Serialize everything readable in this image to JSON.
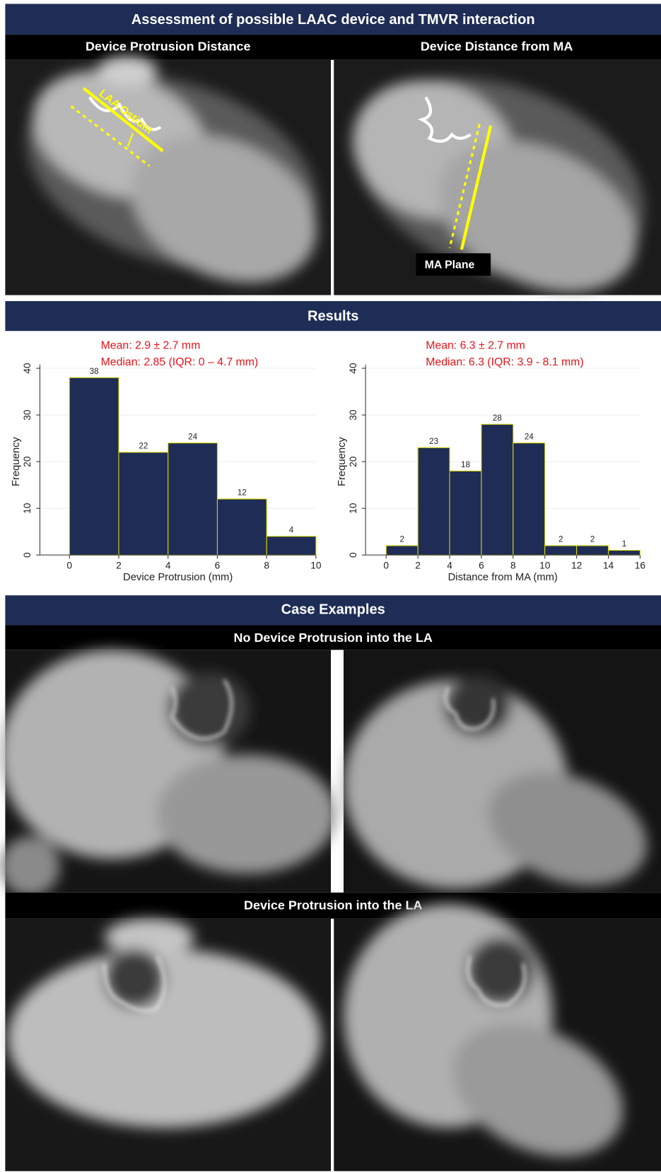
{
  "header": {
    "title": "Assessment of possible LAAC device and TMVR interaction"
  },
  "panels": {
    "left_title": "Device Protrusion Distance",
    "right_title": "Device Distance from MA",
    "ostium_label": "LAA Ostium",
    "ma_plane_label": "MA Plane"
  },
  "results_title": "Results",
  "case_examples_title": "Case Examples",
  "row_titles": [
    "No Device Protrusion into the LA",
    "Device Protrusion into the LA"
  ],
  "chart_data": [
    {
      "type": "histogram",
      "annotations": [
        "Mean: 2.9 ± 2.7 mm",
        "Median: 2.85 (IQR: 0 – 4.7 mm)"
      ],
      "bins": [
        0,
        2,
        4,
        6,
        8,
        10
      ],
      "values": [
        38,
        22,
        24,
        12,
        4
      ],
      "xlabel": "Device Protrusion (mm)",
      "ylabel": "Frequency",
      "xlim": [
        -1.2,
        10
      ],
      "ylim": [
        0,
        40
      ],
      "xticks": [
        0,
        2,
        4,
        6,
        8,
        10
      ],
      "yticks": [
        0,
        10,
        20,
        30,
        40
      ],
      "color": "#1f2d56",
      "edgecolor": "#d8d800",
      "grid": true
    },
    {
      "type": "histogram",
      "annotations": [
        "Mean: 6.3 ± 2.7 mm",
        "Median: 6.3 (IQR: 3.9 - 8.1 mm)"
      ],
      "bins": [
        0,
        2,
        4,
        6,
        8,
        10,
        12,
        14,
        16
      ],
      "values": [
        2,
        23,
        18,
        28,
        24,
        2,
        2,
        1
      ],
      "xlabel": "Distance from MA (mm)",
      "ylabel": "Frequency",
      "xlim": [
        -1.3,
        16
      ],
      "ylim": [
        0,
        40
      ],
      "xticks": [
        0,
        2,
        4,
        6,
        8,
        10,
        12,
        14,
        16
      ],
      "yticks": [
        0,
        10,
        20,
        30,
        40
      ],
      "color": "#1f2d56",
      "edgecolor": "#d8d800",
      "grid": true
    }
  ]
}
